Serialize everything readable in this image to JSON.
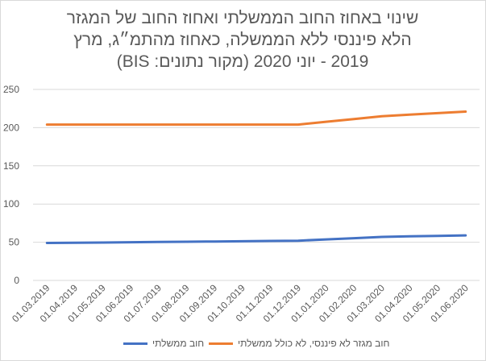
{
  "chart_data": {
    "type": "line",
    "title": "שינוי באחוז החוב הממשלתי ואחוז החוב של המגזר הלא פיננסי ללא הממשלה, כאחוז מהתמ״ג, מרץ 2019 - יוני 2020 (מקור נתונים: BIS)",
    "title_lines": [
      "שינוי באחוז החוב הממשלתי ואחוז החוב של המגזר",
      "הלא פיננסי ללא הממשלה, כאחוז מהתמ״ג, מרץ",
      "2019 - יוני 2020 (מקור נתונים: BIS)"
    ],
    "categories": [
      "01.03.2019",
      "01.04.2019",
      "01.05.2019",
      "01.06.2019",
      "01.07.2019",
      "01.08.2019",
      "01.09.2019",
      "01.10.2019",
      "01.11.2019",
      "01.12.2019",
      "01.01.2020",
      "01.02.2020",
      "01.03.2020",
      "01.04.2020",
      "01.05.2020",
      "01.06.2020"
    ],
    "y_ticks": [
      0,
      50,
      100,
      150,
      200,
      250
    ],
    "ylim": [
      0,
      250
    ],
    "grid": true,
    "legend_position": "bottom",
    "series": [
      {
        "name": "חוב ממשלתי",
        "color": "#4472c4",
        "values": [
          49,
          49.3,
          49.6,
          50,
          50.3,
          50.6,
          51,
          51.3,
          51.7,
          52,
          53.7,
          55.3,
          57,
          57.7,
          58.3,
          59
        ]
      },
      {
        "name": "חוב מגזר לא פיננסי, לא כולל ממשלתי",
        "color": "#ed7d31",
        "values": [
          204,
          204,
          204,
          204,
          204,
          204,
          204,
          204,
          204,
          204,
          207.7,
          211.3,
          215,
          217,
          219,
          221
        ]
      }
    ]
  }
}
